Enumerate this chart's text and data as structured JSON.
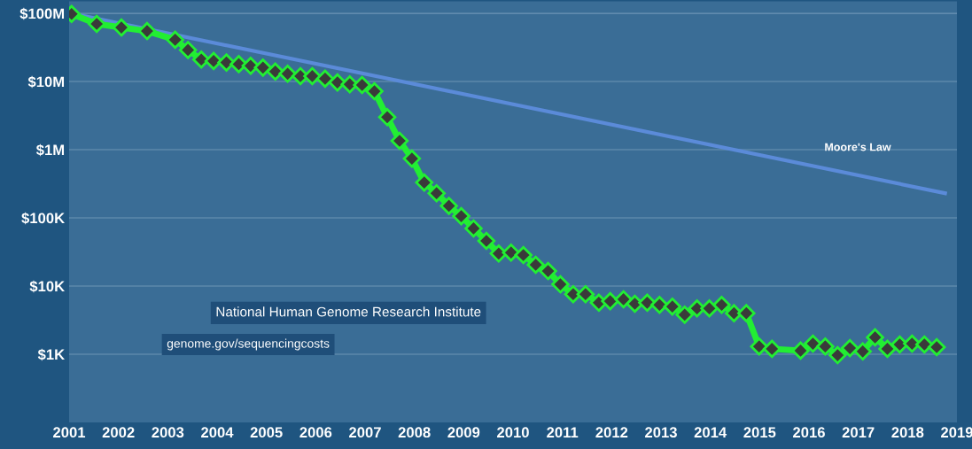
{
  "chart_data": {
    "type": "line",
    "log": "y",
    "grid": "y",
    "marker": "diamond",
    "line_style": "solid",
    "xlim": [
      2001,
      2019
    ],
    "xticks": [
      2001,
      2002,
      2003,
      2004,
      2005,
      2006,
      2007,
      2008,
      2009,
      2010,
      2011,
      2012,
      2013,
      2014,
      2015,
      2016,
      2017,
      2018,
      2019
    ],
    "ylim": [
      100,
      150000000
    ],
    "yticks": [
      {
        "value": 1000,
        "label": "$1K"
      },
      {
        "value": 10000,
        "label": "$10K"
      },
      {
        "value": 100000,
        "label": "$100K"
      },
      {
        "value": 1000000,
        "label": "$1M"
      },
      {
        "value": 10000000,
        "label": "$10M"
      },
      {
        "value": 100000000,
        "label": "$100M"
      }
    ],
    "series": [
      {
        "color": "#22ee33",
        "x": [
          2001.05,
          2001.56,
          2002.06,
          2002.58,
          2003.15,
          2003.41,
          2003.68,
          2003.93,
          2004.19,
          2004.44,
          2004.68,
          2004.93,
          2005.18,
          2005.43,
          2005.69,
          2005.93,
          2006.19,
          2006.44,
          2006.69,
          2006.94,
          2007.19,
          2007.45,
          2007.7,
          2007.95,
          2008.2,
          2008.45,
          2008.7,
          2008.95,
          2009.2,
          2009.46,
          2009.71,
          2009.96,
          2010.21,
          2010.46,
          2010.71,
          2010.96,
          2011.22,
          2011.47,
          2011.74,
          2011.97,
          2012.24,
          2012.47,
          2012.72,
          2012.97,
          2013.23,
          2013.48,
          2013.73,
          2013.98,
          2014.23,
          2014.48,
          2014.73,
          2014.99,
          2015.25,
          2015.83,
          2016.08,
          2016.33,
          2016.58,
          2016.83,
          2017.09,
          2017.34,
          2017.59,
          2017.84,
          2018.09,
          2018.34,
          2018.59
        ],
        "values": [
          98000000,
          70000000,
          62000000,
          55000000,
          41000000,
          29000000,
          21000000,
          20000000,
          19000000,
          18000000,
          17000000,
          16000000,
          14000000,
          13000000,
          12000000,
          12000000,
          11000000,
          9700000,
          9100000,
          8900000,
          7200000,
          3000000,
          1350000,
          740000,
          330000,
          230000,
          150000,
          106000,
          70000,
          46000,
          30000,
          31000,
          28500,
          20500,
          16600,
          10600,
          7600,
          7600,
          5700,
          6000,
          6400,
          5500,
          5700,
          5300,
          5000,
          3800,
          4700,
          4700,
          5300,
          4000,
          4000,
          1300,
          1200,
          1130,
          1430,
          1300,
          970,
          1230,
          1100,
          1770,
          1200,
          1390,
          1430,
          1390,
          1270
        ]
      },
      {
        "name": "Moore's Law",
        "color": "#5b8bd9",
        "marker": "none",
        "x": [
          2001.04,
          2018.76
        ],
        "values": [
          100000000,
          230000
        ]
      }
    ],
    "annotations": [
      "National Human Genome Research Institute",
      "genome.gov/sequencingcosts"
    ]
  }
}
